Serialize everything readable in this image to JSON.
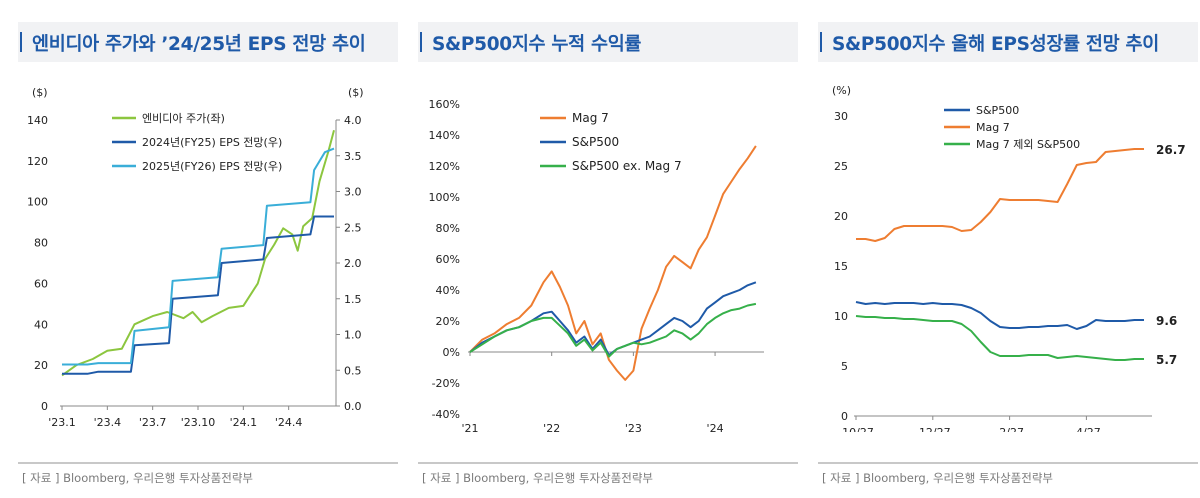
{
  "panels": [
    {
      "title": "엔비디아 주가와 ’24/25년 EPS 전망 추이",
      "source": "[ 자료 ] Bloomberg, 우리은행 투자상품전략부"
    },
    {
      "title": "S&P500지수 누적 수익률",
      "source": "[ 자료 ] Bloomberg, 우리은행 투자상품전략부"
    },
    {
      "title": "S&P500지수 올해 EPS성장률 전망 추이",
      "source": "[ 자료 ] Bloomberg, 우리은행 투자상품전략부"
    }
  ],
  "chart_data": [
    {
      "type": "line",
      "y_unit_left": "($)",
      "y_unit_right": "($)",
      "ylim_left": [
        0,
        140
      ],
      "yticks_left": [
        "0",
        "20",
        "40",
        "60",
        "80",
        "100",
        "120",
        "140"
      ],
      "ylim_right": [
        0,
        4.0
      ],
      "yticks_right": [
        "0.0",
        "0.5",
        "1.0",
        "1.5",
        "2.0",
        "2.5",
        "3.0",
        "3.5",
        "4.0"
      ],
      "x_ticks": [
        "'23.1",
        "'23.4",
        "'23.7",
        "'23.10",
        "'24.1",
        "'24.4"
      ],
      "legend_position": "top-center",
      "grid": false,
      "series": [
        {
          "name": "엔비디아 주가(좌)",
          "axis": "left",
          "color": "#8cc63f",
          "x": [
            2023.0,
            2023.08,
            2023.17,
            2023.25,
            2023.33,
            2023.4,
            2023.45,
            2023.5,
            2023.58,
            2023.67,
            2023.72,
            2023.77,
            2023.83,
            2023.92,
            2024.0,
            2024.08,
            2024.12,
            2024.17,
            2024.22,
            2024.27,
            2024.3,
            2024.33,
            2024.38,
            2024.42,
            2024.47,
            2024.5
          ],
          "y": [
            15,
            20,
            23,
            27,
            28,
            40,
            42,
            44,
            46,
            43,
            46,
            41,
            44,
            48,
            49,
            60,
            72,
            79,
            87,
            84,
            76,
            88,
            92,
            110,
            125,
            135
          ]
        },
        {
          "name": "2024년(FY25) EPS 전망(우)",
          "axis": "right",
          "color": "#1f5aa8",
          "x": [
            2023.0,
            2023.14,
            2023.2,
            2023.38,
            2023.4,
            2023.59,
            2023.61,
            2023.86,
            2023.88,
            2024.11,
            2024.13,
            2024.37,
            2024.39,
            2024.5
          ],
          "y": [
            0.45,
            0.45,
            0.48,
            0.48,
            0.85,
            0.88,
            1.5,
            1.55,
            2.0,
            2.05,
            2.35,
            2.4,
            2.65,
            2.65
          ]
        },
        {
          "name": "2025년(FY26) EPS 전망(우)",
          "axis": "right",
          "color": "#3aaed8",
          "x": [
            2023.0,
            2023.14,
            2023.2,
            2023.38,
            2023.4,
            2023.59,
            2023.61,
            2023.86,
            2023.88,
            2024.11,
            2024.13,
            2024.37,
            2024.39,
            2024.45,
            2024.5
          ],
          "y": [
            0.58,
            0.58,
            0.6,
            0.6,
            1.05,
            1.1,
            1.75,
            1.8,
            2.2,
            2.25,
            2.8,
            2.85,
            3.3,
            3.55,
            3.6
          ]
        }
      ]
    },
    {
      "type": "line",
      "ylim": [
        -40,
        160
      ],
      "yticks": [
        "-40%",
        "-20%",
        "0%",
        "20%",
        "40%",
        "60%",
        "80%",
        "100%",
        "120%",
        "140%",
        "160%"
      ],
      "x_ticks": [
        "'21",
        "'22",
        "'23",
        "'24"
      ],
      "legend_position": "top-center",
      "grid": false,
      "series": [
        {
          "name": "Mag 7",
          "color": "#ee7d31",
          "x": [
            2021.0,
            2021.15,
            2021.3,
            2021.45,
            2021.6,
            2021.75,
            2021.9,
            2022.0,
            2022.1,
            2022.2,
            2022.3,
            2022.4,
            2022.5,
            2022.6,
            2022.7,
            2022.8,
            2022.9,
            2023.0,
            2023.1,
            2023.2,
            2023.3,
            2023.4,
            2023.5,
            2023.6,
            2023.7,
            2023.8,
            2023.9,
            2024.0,
            2024.1,
            2024.2,
            2024.3,
            2024.4,
            2024.5
          ],
          "y": [
            0,
            8,
            12,
            18,
            22,
            30,
            45,
            52,
            42,
            30,
            12,
            20,
            5,
            12,
            -5,
            -12,
            -18,
            -12,
            15,
            28,
            40,
            55,
            62,
            58,
            54,
            66,
            74,
            88,
            102,
            110,
            118,
            125,
            133
          ]
        },
        {
          "name": "S&P500",
          "color": "#1f5aa8",
          "x": [
            2021.0,
            2021.15,
            2021.3,
            2021.45,
            2021.6,
            2021.75,
            2021.9,
            2022.0,
            2022.1,
            2022.2,
            2022.3,
            2022.4,
            2022.5,
            2022.6,
            2022.7,
            2022.8,
            2022.9,
            2023.0,
            2023.1,
            2023.2,
            2023.3,
            2023.4,
            2023.5,
            2023.6,
            2023.7,
            2023.8,
            2023.9,
            2024.0,
            2024.1,
            2024.2,
            2024.3,
            2024.4,
            2024.5
          ],
          "y": [
            0,
            6,
            10,
            14,
            16,
            20,
            25,
            26,
            20,
            14,
            6,
            10,
            2,
            8,
            -2,
            2,
            4,
            6,
            8,
            10,
            14,
            18,
            22,
            20,
            16,
            20,
            28,
            32,
            36,
            38,
            40,
            43,
            45
          ]
        },
        {
          "name": "S&P500 ex. Mag 7",
          "color": "#36b04a",
          "x": [
            2021.0,
            2021.15,
            2021.3,
            2021.45,
            2021.6,
            2021.75,
            2021.9,
            2022.0,
            2022.1,
            2022.2,
            2022.3,
            2022.4,
            2022.5,
            2022.6,
            2022.7,
            2022.8,
            2022.9,
            2023.0,
            2023.1,
            2023.2,
            2023.3,
            2023.4,
            2023.5,
            2023.6,
            2023.7,
            2023.8,
            2023.9,
            2024.0,
            2024.1,
            2024.2,
            2024.3,
            2024.4,
            2024.5
          ],
          "y": [
            0,
            5,
            10,
            14,
            16,
            20,
            22,
            22,
            17,
            12,
            4,
            8,
            1,
            6,
            -3,
            2,
            4,
            6,
            5,
            6,
            8,
            10,
            14,
            12,
            8,
            12,
            18,
            22,
            25,
            27,
            28,
            30,
            31
          ]
        }
      ]
    },
    {
      "type": "line",
      "y_unit": "(%)",
      "ylim": [
        0,
        30
      ],
      "yticks": [
        "0",
        "5",
        "10",
        "15",
        "20",
        "25",
        "30"
      ],
      "x_ticks": [
        "10/27",
        "12/27",
        "2/27",
        "4/27"
      ],
      "legend_position": "top-center",
      "grid": false,
      "data_labels": [
        "26.7",
        "9.6",
        "5.7"
      ],
      "series": [
        {
          "name": "S&P500",
          "color": "#1f5aa8",
          "x": [
            0,
            0.25,
            0.5,
            0.75,
            1.0,
            1.25,
            1.5,
            1.75,
            2.0,
            2.25,
            2.5,
            2.75,
            3.0,
            3.25,
            3.5,
            3.75,
            4.0,
            4.25,
            4.5,
            4.75,
            5.0,
            5.25,
            5.5,
            5.75,
            6.0,
            6.25,
            6.5,
            6.75,
            7.0,
            7.25,
            7.5
          ],
          "y": [
            11.4,
            11.2,
            11.3,
            11.2,
            11.3,
            11.3,
            11.3,
            11.2,
            11.3,
            11.2,
            11.2,
            11.1,
            10.8,
            10.3,
            9.5,
            8.9,
            8.8,
            8.8,
            8.9,
            8.9,
            9.0,
            9.0,
            9.1,
            8.7,
            9.0,
            9.6,
            9.5,
            9.5,
            9.5,
            9.6,
            9.6
          ]
        },
        {
          "name": "Mag 7",
          "color": "#ee7d31",
          "x": [
            0,
            0.25,
            0.5,
            0.75,
            1.0,
            1.25,
            1.5,
            1.75,
            2.0,
            2.25,
            2.5,
            2.75,
            3.0,
            3.25,
            3.5,
            3.75,
            4.0,
            4.25,
            4.5,
            4.75,
            5.0,
            5.25,
            5.5,
            5.75,
            6.0,
            6.25,
            6.5,
            6.75,
            7.0,
            7.25,
            7.5
          ],
          "y": [
            17.7,
            17.7,
            17.5,
            17.8,
            18.7,
            19.0,
            19.0,
            19.0,
            19.0,
            19.0,
            18.9,
            18.5,
            18.6,
            19.4,
            20.4,
            21.7,
            21.6,
            21.6,
            21.6,
            21.6,
            21.5,
            21.4,
            23.2,
            25.1,
            25.3,
            25.4,
            26.4,
            26.5,
            26.6,
            26.7,
            26.7
          ]
        },
        {
          "name": "Mag 7 제외 S&P500",
          "color": "#36b04a",
          "x": [
            0,
            0.25,
            0.5,
            0.75,
            1.0,
            1.25,
            1.5,
            1.75,
            2.0,
            2.25,
            2.5,
            2.75,
            3.0,
            3.25,
            3.5,
            3.75,
            4.0,
            4.25,
            4.5,
            4.75,
            5.0,
            5.25,
            5.5,
            5.75,
            6.0,
            6.25,
            6.5,
            6.75,
            7.0,
            7.25,
            7.5
          ],
          "y": [
            10.0,
            9.9,
            9.9,
            9.8,
            9.8,
            9.7,
            9.7,
            9.6,
            9.5,
            9.5,
            9.5,
            9.2,
            8.5,
            7.4,
            6.4,
            6.0,
            6.0,
            6.0,
            6.1,
            6.1,
            6.1,
            5.8,
            5.9,
            6.0,
            5.9,
            5.8,
            5.7,
            5.6,
            5.6,
            5.7,
            5.7
          ]
        }
      ]
    }
  ]
}
